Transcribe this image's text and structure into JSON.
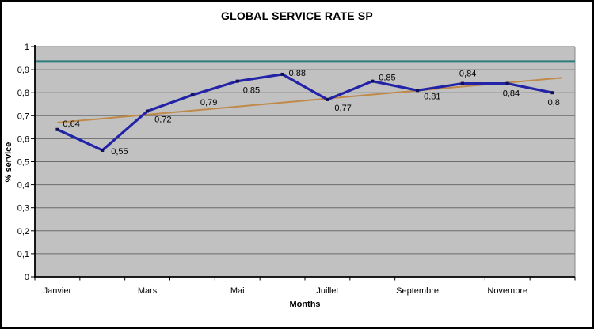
{
  "window": {
    "background": "#ffffff",
    "border_color": "#000000"
  },
  "chart_data": {
    "type": "line",
    "title": "GLOBAL SERVICE RATE SP",
    "xlabel": "Months",
    "ylabel": "% service",
    "n_categories": 12,
    "x_tick_labels": [
      "Janvier",
      "Mars",
      "Mai",
      "Juillet",
      "Septembre",
      "Novembre"
    ],
    "x_tick_indices": [
      0,
      2,
      4,
      6,
      8,
      10
    ],
    "ylim": [
      0,
      1
    ],
    "y_ticks": {
      "values": [
        0,
        0.1,
        0.2,
        0.3,
        0.4,
        0.5,
        0.6,
        0.7,
        0.8,
        0.9,
        1
      ],
      "labels": [
        "0",
        "0,1",
        "0,2",
        "0,3",
        "0,4",
        "0,5",
        "0,6",
        "0,7",
        "0,8",
        "0,9",
        "1"
      ]
    },
    "series": [
      {
        "color": "#2323a8",
        "marker_color": "#0f0f55",
        "values": [
          0.64,
          0.55,
          0.72,
          0.79,
          0.85,
          0.88,
          0.77,
          0.85,
          0.81,
          0.84,
          0.84,
          0.8
        ],
        "value_labels": [
          "0,64",
          "0,55",
          "0,72",
          "0,79",
          "0,85",
          "0,88",
          "0,77",
          "0,85",
          "0,81",
          "0,84",
          "0,84",
          "0,8"
        ],
        "label_offsets": [
          [
            7,
            -4
          ],
          [
            11,
            5
          ],
          [
            9,
            14
          ],
          [
            10,
            13
          ],
          [
            7,
            15
          ],
          [
            8,
            2
          ],
          [
            9,
            14
          ],
          [
            8,
            -1
          ],
          [
            8,
            11
          ],
          [
            -4,
            -9
          ],
          [
            -6,
            16
          ],
          [
            -6,
            16
          ]
        ]
      }
    ],
    "target_line": {
      "value": 0.935,
      "color": "#2e7d7d"
    },
    "trend_line": {
      "start_value": 0.67,
      "end_value": 0.865,
      "color": "#bf8a49"
    },
    "grid": true,
    "legend": "none",
    "plot_bg": "#c1c1c1",
    "grid_color": "#6b6b6b",
    "axis_color": "#000000",
    "text_color": "#000000"
  }
}
